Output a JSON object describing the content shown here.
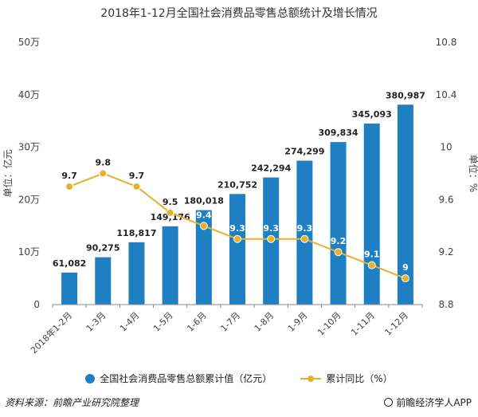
{
  "chart_data": {
    "type": "bar+line",
    "title": "2018年1-12月全国社会消费品零售总额统计及增长情况",
    "categories": [
      "2018年1-2月",
      "1-3月",
      "1-4月",
      "1-5月",
      "1-6月",
      "1-7月",
      "1-8月",
      "1-9月",
      "1-10月",
      "1-11月",
      "1-12月"
    ],
    "series": [
      {
        "name": "全国社会消费品零售总额累计值（亿元）",
        "type": "bar",
        "axis": "left",
        "color": "#1E7FC3",
        "values": [
          61082,
          90275,
          118817,
          149176,
          180018,
          210752,
          242294,
          274299,
          309834,
          345093,
          380987
        ],
        "labels": [
          "61,082",
          "90,275",
          "118,817",
          "149,176",
          "180,018",
          "210,752",
          "242,294",
          "274,299",
          "309,834",
          "345,093",
          "380,987"
        ]
      },
      {
        "name": "累计同比（%）",
        "type": "line",
        "axis": "right",
        "color": "#E5B02E",
        "values": [
          9.7,
          9.8,
          9.7,
          9.5,
          9.4,
          9.3,
          9.3,
          9.3,
          9.2,
          9.1,
          9.0
        ],
        "labels": [
          "9.7",
          "9.8",
          "9.7",
          "9.5",
          "9.4",
          "9.3",
          "9.3",
          "9.3",
          "9.2",
          "9.1",
          "9"
        ]
      }
    ],
    "left_axis": {
      "label": "单位：亿元",
      "ylim": [
        0,
        500000
      ],
      "ticks": [
        0,
        100000,
        200000,
        300000,
        400000,
        500000
      ],
      "tick_labels": [
        "0",
        "10万",
        "20万",
        "30万",
        "40万",
        "50万"
      ]
    },
    "right_axis": {
      "label": "单位：%",
      "ylim": [
        8.8,
        10.8
      ],
      "ticks": [
        8.8,
        9.2,
        9.6,
        10.0,
        10.4,
        10.8
      ],
      "tick_labels": [
        "8.8",
        "9.2",
        "9.6",
        "10",
        "10.4",
        "10.8"
      ]
    },
    "grid": false,
    "legend": "bottom-center"
  },
  "footer": {
    "source": "资料来源：前瞻产业研究院整理",
    "brand": "前瞻经济学人APP"
  }
}
